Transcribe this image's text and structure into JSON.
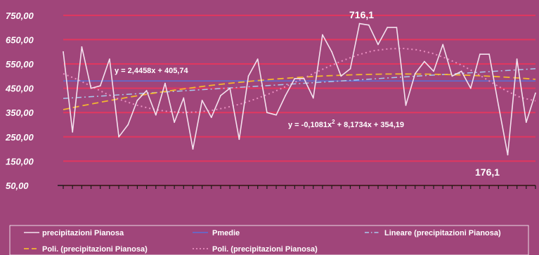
{
  "chart_data": {
    "type": "line",
    "title": "",
    "xlabel": "",
    "ylabel": "",
    "ylim": [
      50,
      790
    ],
    "yticks": [
      "750,00",
      "650,00",
      "550,00",
      "450,00",
      "350,00",
      "250,00",
      "150,00",
      "50,00"
    ],
    "ytick_values": [
      750,
      650,
      550,
      450,
      350,
      250,
      150,
      50
    ],
    "grid": true,
    "legend_position": "bottom",
    "colors": {
      "background": "#a0457a",
      "plot_area": "#a0457a",
      "gridline": "#e1375f",
      "precip": "#f3e1ee",
      "pmedie": "#5a6fd8",
      "lineare": "#a9c9ee",
      "poly2": "#f2b531",
      "poly6": "#e98ec0",
      "text": "#ffffff"
    },
    "series": [
      {
        "name": "precipitazioni Pianosa",
        "values": [
          600,
          270,
          620,
          450,
          460,
          570,
          250,
          300,
          400,
          440,
          340,
          470,
          310,
          410,
          200,
          400,
          330,
          420,
          450,
          240,
          500,
          570,
          350,
          340,
          420,
          490,
          490,
          410,
          670,
          600,
          500,
          530,
          716.1,
          710,
          630,
          700,
          700,
          380,
          510,
          560,
          520,
          630,
          500,
          520,
          450,
          590,
          590,
          380,
          176.1,
          570,
          310,
          430
        ]
      },
      {
        "name": "Pmedie",
        "line": [
          480,
          480
        ]
      },
      {
        "name": "Lineare (precipitazioni Pianosa)",
        "line": [
          408.19,
          530.48
        ]
      },
      {
        "name": "Poli. (precipitazioni Pianosa)",
        "poly": [
          354.19,
          8.1734,
          -0.1081
        ]
      },
      {
        "name": "Poli. (precipitazioni Pianosa)",
        "values": [
          510,
          485,
          455,
          425,
          400,
          380,
          365,
          355,
          350,
          352,
          358,
          370,
          385,
          405,
          428,
          455,
          483,
          512,
          540,
          565,
          588,
          604,
          612,
          614,
          608,
          594,
          572,
          545,
          512,
          475,
          440,
          412,
          398
        ]
      }
    ],
    "annotations": [
      {
        "text": "y = 2,4458x + 405,74"
      },
      {
        "text_main": "y = -0,1081x",
        "sup": "2",
        "text_rest": " + 8,1734x + 354,19"
      },
      {
        "text": "716,1"
      },
      {
        "text": "176,1"
      }
    ],
    "legend": [
      {
        "label": "precipitazioni Pianosa"
      },
      {
        "label": "Pmedie"
      },
      {
        "label": "Lineare (precipitazioni Pianosa)"
      },
      {
        "label": "Poli. (precipitazioni Pianosa)"
      },
      {
        "label": "Poli. (precipitazioni Pianosa)"
      }
    ]
  }
}
